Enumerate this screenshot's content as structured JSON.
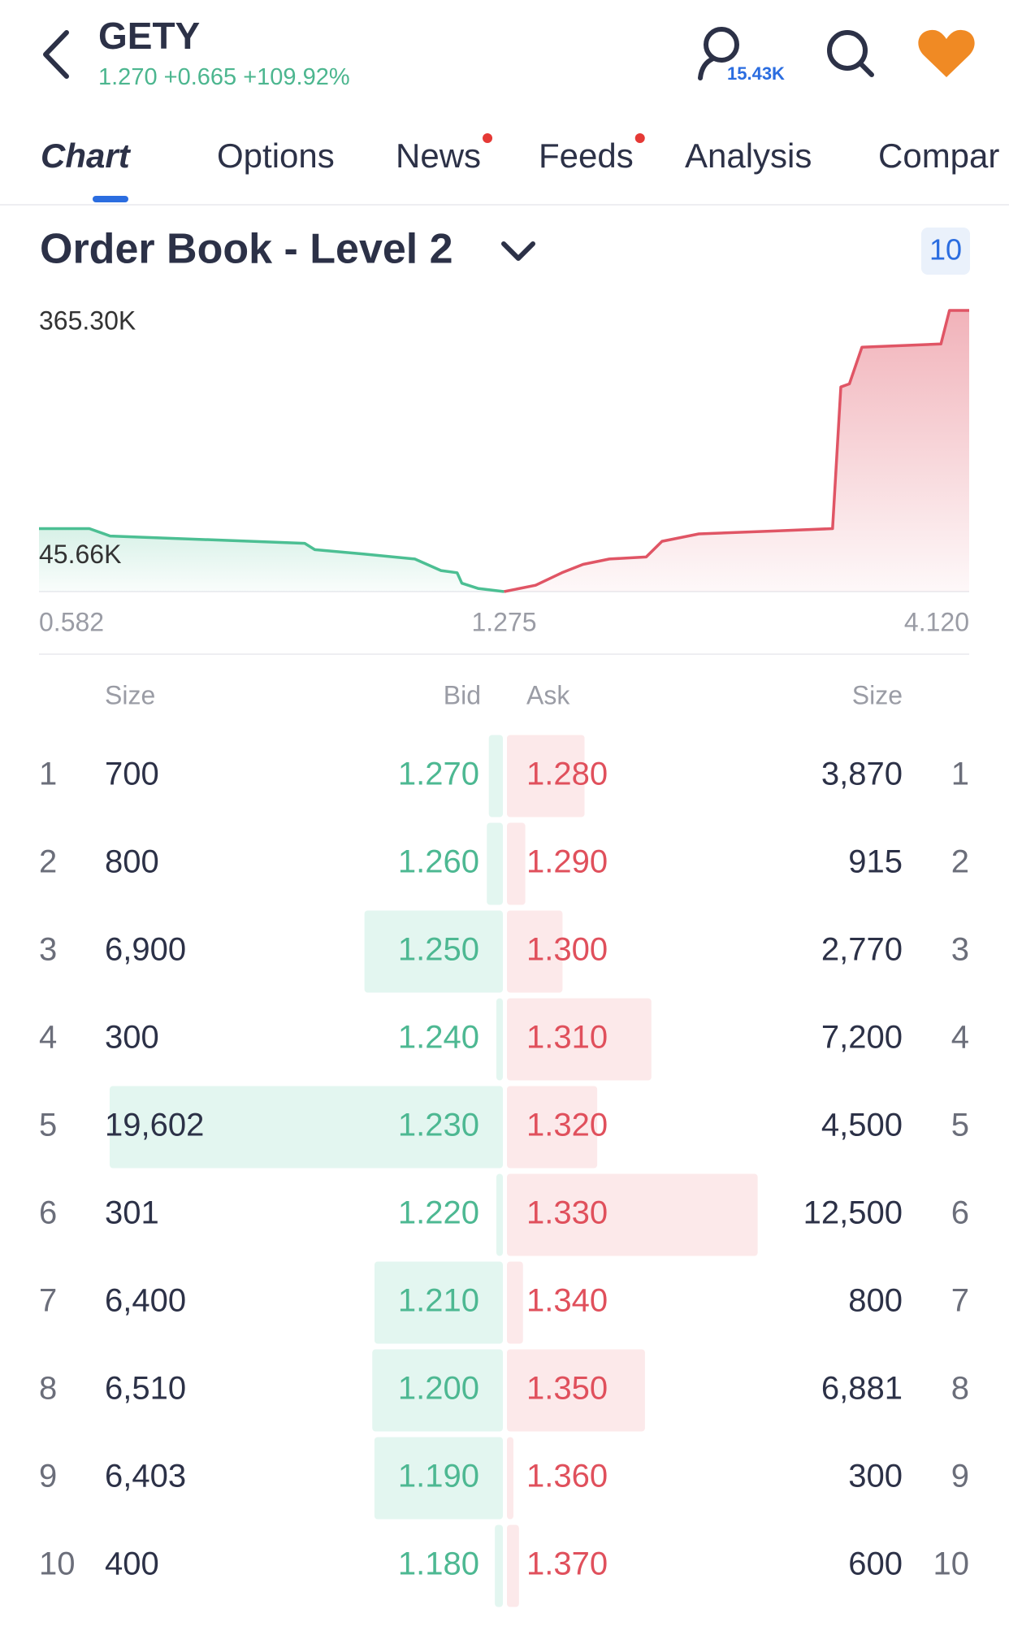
{
  "header": {
    "symbol": "GETY",
    "price": "1.270",
    "change": "+0.665",
    "change_pct": "+109.92%",
    "followers": "15.43K"
  },
  "tabs": [
    "Chart",
    "Options",
    "News",
    "Feeds",
    "Analysis",
    "Compar"
  ],
  "section": {
    "title": "Order Book - Level 2",
    "depth_setting": "10"
  },
  "chart_data": {
    "type": "area",
    "xlim": [
      0.582,
      4.12
    ],
    "xticks": [
      0.582,
      1.275,
      {
        "value": 4.12,
        "label": "4.120"
      }
    ],
    "ylim": [
      0,
      365300
    ],
    "yticks": [
      {
        "value": 365300,
        "label": "365.30K"
      },
      {
        "value": 45660,
        "label": "45.66K"
      }
    ],
    "series": [
      {
        "color": "#4cbf93",
        "x": [
          0.582,
          0.657,
          0.688,
          0.978,
          0.993,
          1.064,
          1.142,
          1.181,
          1.205,
          1.212,
          1.236,
          1.275
        ],
        "values": [
          81800,
          81800,
          72200,
          62700,
          54500,
          49000,
          42300,
          27300,
          24500,
          10900,
          4100,
          0
        ]
      },
      {
        "color": "#e05565",
        "x": [
          1.275,
          1.468,
          1.629,
          1.758,
          1.919,
          2.144,
          2.241,
          2.466,
          2.949,
          3.284,
          3.335,
          3.387,
          3.464,
          3.947,
          3.999,
          4.12
        ],
        "values": [
          0,
          8200,
          24500,
          35400,
          42300,
          45000,
          65400,
          75000,
          79000,
          81800,
          265800,
          269900,
          317600,
          321700,
          365300,
          365300
        ]
      }
    ]
  },
  "order_book": {
    "headers": [
      "Size",
      "Bid",
      "Ask",
      "Size"
    ],
    "rows": [
      {
        "level": 1,
        "bid_size": 700,
        "bid": "1.270",
        "ask": "1.280",
        "ask_size": {
          "value": 3870,
          "label": "3,870"
        }
      },
      {
        "level": 2,
        "bid_size": 800,
        "bid": "1.260",
        "ask": "1.290",
        "ask_size": 915
      },
      {
        "level": 3,
        "bid_size": {
          "value": 6900,
          "label": "6,900"
        },
        "bid": "1.250",
        "ask": "1.300",
        "ask_size": {
          "value": 2770,
          "label": "2,770"
        }
      },
      {
        "level": 4,
        "bid_size": 300,
        "bid": "1.240",
        "ask": "1.310",
        "ask_size": {
          "value": 7200,
          "label": "7,200"
        }
      },
      {
        "level": 5,
        "bid_size": {
          "value": 19602,
          "label": "19,602"
        },
        "bid": "1.230",
        "ask": "1.320",
        "ask_size": {
          "value": 4500,
          "label": "4,500"
        }
      },
      {
        "level": 6,
        "bid_size": 301,
        "bid": "1.220",
        "ask": "1.330",
        "ask_size": {
          "value": 12500,
          "label": "12,500"
        }
      },
      {
        "level": 7,
        "bid_size": {
          "value": 6400,
          "label": "6,400"
        },
        "bid": "1.210",
        "ask": "1.340",
        "ask_size": 800
      },
      {
        "level": 8,
        "bid_size": {
          "value": 6510,
          "label": "6,510"
        },
        "bid": "1.200",
        "ask": "1.350",
        "ask_size": {
          "value": 6881,
          "label": "6,881"
        }
      },
      {
        "level": 9,
        "bid_size": {
          "value": 6403,
          "label": "6,403"
        },
        "bid": "1.190",
        "ask": "1.360",
        "ask_size": 300
      },
      {
        "level": 10,
        "bid_size": 400,
        "bid": "1.180",
        "ask": "1.370",
        "ask_size": 600
      }
    ]
  }
}
